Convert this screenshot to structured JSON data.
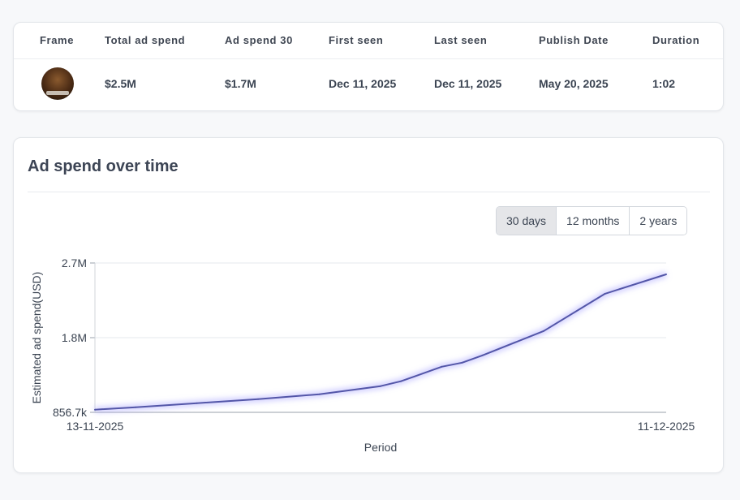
{
  "table": {
    "headers": {
      "frame": "Frame",
      "total_ad_spend": "Total ad spend",
      "ad_spend_30": "Ad spend 30",
      "first_seen": "First seen",
      "last_seen": "Last seen",
      "publish_date": "Publish Date",
      "duration": "Duration"
    },
    "row": {
      "total_ad_spend": "$2.5M",
      "ad_spend_30": "$1.7M",
      "first_seen": "Dec 11, 2025",
      "last_seen": "Dec 11, 2025",
      "publish_date": "May 20, 2025",
      "duration": "1:02"
    }
  },
  "chart_section": {
    "title": "Ad spend over time",
    "ranges": [
      "30 days",
      "12 months",
      "2 years"
    ],
    "active_range": "30 days"
  },
  "chart_data": {
    "type": "area",
    "title": "",
    "xlabel": "Period",
    "ylabel": "Estimated ad spend(USD)",
    "x_tick_labels": [
      "13-11-2025",
      "11-12-2025"
    ],
    "y_tick_labels": [
      "856.7k",
      "1.8M",
      "2.7M"
    ],
    "ylim": [
      856700,
      2700000
    ],
    "grid": true,
    "line_color": "#5356a8",
    "series": [
      {
        "x": [
          "13-11-2025",
          "15-11-2025",
          "18-11-2025",
          "21-11-2025",
          "24-11-2025",
          "27-11-2025",
          "28-11-2025",
          "30-11-2025",
          "01-12-2025",
          "02-12-2025",
          "05-12-2025",
          "08-12-2025",
          "11-12-2025"
        ],
        "y": [
          890000,
          920000,
          970000,
          1020000,
          1080000,
          1180000,
          1240000,
          1420000,
          1470000,
          1560000,
          1860000,
          2320000,
          2560000
        ]
      }
    ]
  }
}
